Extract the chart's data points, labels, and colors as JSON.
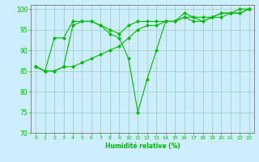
{
  "xlabel": "Humidité relative (%)",
  "background_color": "#cceeff",
  "grid_color": "#99ccbb",
  "line_color": "#00bb00",
  "xlim": [
    -0.5,
    23.5
  ],
  "ylim": [
    70,
    101
  ],
  "yticks": [
    70,
    75,
    80,
    85,
    90,
    95,
    100
  ],
  "xticks": [
    0,
    1,
    2,
    3,
    4,
    5,
    6,
    7,
    8,
    9,
    10,
    11,
    12,
    13,
    14,
    15,
    16,
    17,
    18,
    19,
    20,
    21,
    22,
    23
  ],
  "series1_x": [
    0,
    1,
    2,
    3,
    4,
    5,
    6,
    7,
    8,
    9,
    10,
    11,
    12,
    13,
    14,
    15,
    16,
    17,
    18,
    19,
    20,
    21,
    22,
    23
  ],
  "series1_y": [
    86,
    85,
    93,
    93,
    97,
    97,
    97,
    96,
    94,
    93,
    88,
    75,
    83,
    90,
    97,
    97,
    99,
    98,
    97,
    98,
    99,
    99,
    100,
    100
  ],
  "series2_x": [
    0,
    1,
    2,
    3,
    4,
    5,
    6,
    7,
    8,
    9,
    10,
    11,
    12,
    13,
    14,
    15,
    16,
    17,
    18,
    19,
    20,
    21,
    22,
    23
  ],
  "series2_y": [
    86,
    85,
    85,
    86,
    86,
    87,
    88,
    89,
    90,
    91,
    93,
    95,
    96,
    96,
    97,
    97,
    98,
    97,
    97,
    98,
    98,
    99,
    99,
    100
  ],
  "series3_x": [
    0,
    1,
    2,
    3,
    4,
    5,
    6,
    7,
    8,
    9,
    10,
    11,
    12,
    13,
    14,
    15,
    16,
    17,
    18,
    19,
    20,
    21,
    22,
    23
  ],
  "series3_y": [
    86,
    85,
    85,
    86,
    96,
    97,
    97,
    96,
    95,
    94,
    96,
    97,
    97,
    97,
    97,
    97,
    98,
    98,
    98,
    98,
    99,
    99,
    99,
    100
  ]
}
